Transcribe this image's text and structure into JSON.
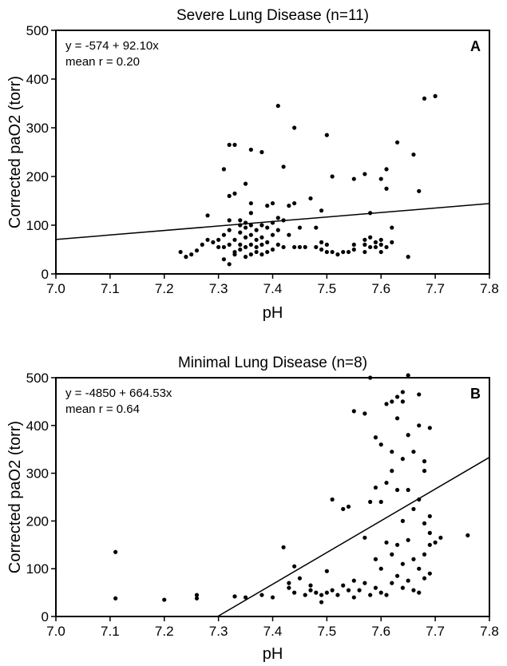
{
  "chart_data": [
    {
      "type": "scatter",
      "panel_label": "A",
      "title": "Severe Lung Disease (n=11)",
      "xlabel": "pH",
      "ylabel": "Corrected paO2 (torr)",
      "xlim": [
        7.0,
        7.8
      ],
      "ylim": [
        0,
        500
      ],
      "xticks": [
        7.0,
        7.1,
        7.2,
        7.3,
        7.4,
        7.5,
        7.6,
        7.7,
        7.8
      ],
      "yticks": [
        0,
        100,
        200,
        300,
        400,
        500
      ],
      "xtick_labels": [
        "7.0",
        "7.1",
        "7.2",
        "7.3",
        "7.4",
        "7.5",
        "7.6",
        "7.7",
        "7.8"
      ],
      "ytick_labels": [
        "0",
        "100",
        "200",
        "300",
        "400",
        "500"
      ],
      "annotation_lines": [
        "y = -574 + 92.10x",
        "mean r = 0.20"
      ],
      "grid": false,
      "regression": {
        "intercept": -574,
        "slope": 92.1
      },
      "points": [
        [
          7.23,
          45
        ],
        [
          7.24,
          35
        ],
        [
          7.25,
          40
        ],
        [
          7.26,
          48
        ],
        [
          7.27,
          60
        ],
        [
          7.28,
          70
        ],
        [
          7.28,
          120
        ],
        [
          7.29,
          65
        ],
        [
          7.3,
          55
        ],
        [
          7.3,
          70
        ],
        [
          7.31,
          30
        ],
        [
          7.31,
          55
        ],
        [
          7.31,
          80
        ],
        [
          7.31,
          215
        ],
        [
          7.32,
          20
        ],
        [
          7.32,
          60
        ],
        [
          7.32,
          90
        ],
        [
          7.32,
          110
        ],
        [
          7.32,
          160
        ],
        [
          7.32,
          265
        ],
        [
          7.33,
          40
        ],
        [
          7.33,
          45
        ],
        [
          7.33,
          70
        ],
        [
          7.33,
          165
        ],
        [
          7.33,
          265
        ],
        [
          7.34,
          50
        ],
        [
          7.34,
          60
        ],
        [
          7.34,
          85
        ],
        [
          7.34,
          100
        ],
        [
          7.34,
          110
        ],
        [
          7.35,
          35
        ],
        [
          7.35,
          55
        ],
        [
          7.35,
          75
        ],
        [
          7.35,
          95
        ],
        [
          7.35,
          105
        ],
        [
          7.35,
          185
        ],
        [
          7.36,
          40
        ],
        [
          7.36,
          60
        ],
        [
          7.36,
          80
        ],
        [
          7.36,
          100
        ],
        [
          7.36,
          125
        ],
        [
          7.36,
          145
        ],
        [
          7.36,
          255
        ],
        [
          7.37,
          45
        ],
        [
          7.37,
          55
        ],
        [
          7.37,
          70
        ],
        [
          7.37,
          90
        ],
        [
          7.38,
          40
        ],
        [
          7.38,
          60
        ],
        [
          7.38,
          75
        ],
        [
          7.38,
          100
        ],
        [
          7.38,
          250
        ],
        [
          7.39,
          45
        ],
        [
          7.39,
          65
        ],
        [
          7.39,
          95
        ],
        [
          7.39,
          140
        ],
        [
          7.4,
          50
        ],
        [
          7.4,
          80
        ],
        [
          7.4,
          105
        ],
        [
          7.4,
          145
        ],
        [
          7.41,
          60
        ],
        [
          7.41,
          90
        ],
        [
          7.41,
          115
        ],
        [
          7.41,
          345
        ],
        [
          7.42,
          55
        ],
        [
          7.42,
          110
        ],
        [
          7.42,
          220
        ],
        [
          7.43,
          80
        ],
        [
          7.43,
          140
        ],
        [
          7.44,
          55
        ],
        [
          7.44,
          145
        ],
        [
          7.44,
          300
        ],
        [
          7.45,
          55
        ],
        [
          7.45,
          95
        ],
        [
          7.46,
          55
        ],
        [
          7.47,
          155
        ],
        [
          7.48,
          55
        ],
        [
          7.48,
          95
        ],
        [
          7.49,
          50
        ],
        [
          7.49,
          65
        ],
        [
          7.49,
          130
        ],
        [
          7.5,
          45
        ],
        [
          7.5,
          60
        ],
        [
          7.5,
          285
        ],
        [
          7.51,
          45
        ],
        [
          7.51,
          200
        ],
        [
          7.52,
          40
        ],
        [
          7.53,
          45
        ],
        [
          7.54,
          45
        ],
        [
          7.55,
          50
        ],
        [
          7.55,
          60
        ],
        [
          7.55,
          195
        ],
        [
          7.57,
          45
        ],
        [
          7.57,
          60
        ],
        [
          7.57,
          70
        ],
        [
          7.57,
          205
        ],
        [
          7.58,
          55
        ],
        [
          7.58,
          75
        ],
        [
          7.58,
          125
        ],
        [
          7.59,
          55
        ],
        [
          7.59,
          65
        ],
        [
          7.6,
          45
        ],
        [
          7.6,
          60
        ],
        [
          7.6,
          70
        ],
        [
          7.6,
          195
        ],
        [
          7.61,
          55
        ],
        [
          7.61,
          215
        ],
        [
          7.61,
          175
        ],
        [
          7.62,
          65
        ],
        [
          7.62,
          95
        ],
        [
          7.63,
          270
        ],
        [
          7.65,
          35
        ],
        [
          7.66,
          245
        ],
        [
          7.67,
          170
        ],
        [
          7.68,
          360
        ],
        [
          7.7,
          365
        ]
      ]
    },
    {
      "type": "scatter",
      "panel_label": "B",
      "title": "Minimal Lung Disease (n=8)",
      "xlabel": "pH",
      "ylabel": "Corrected paO2 (torr)",
      "xlim": [
        7.0,
        7.8
      ],
      "ylim": [
        0,
        500
      ],
      "xticks": [
        7.0,
        7.1,
        7.2,
        7.3,
        7.4,
        7.5,
        7.6,
        7.7,
        7.8
      ],
      "yticks": [
        0,
        100,
        200,
        300,
        400,
        500
      ],
      "xtick_labels": [
        "7.0",
        "7.1",
        "7.2",
        "7.3",
        "7.4",
        "7.5",
        "7.6",
        "7.7",
        "7.8"
      ],
      "ytick_labels": [
        "0",
        "100",
        "200",
        "300",
        "400",
        "500"
      ],
      "annotation_lines": [
        "y = -4850 + 664.53x",
        "mean r = 0.64"
      ],
      "grid": false,
      "regression": {
        "intercept": -4850,
        "slope": 664.53
      },
      "points": [
        [
          7.11,
          135
        ],
        [
          7.11,
          38
        ],
        [
          7.2,
          35
        ],
        [
          7.26,
          45
        ],
        [
          7.26,
          38
        ],
        [
          7.33,
          42
        ],
        [
          7.35,
          40
        ],
        [
          7.38,
          45
        ],
        [
          7.4,
          40
        ],
        [
          7.42,
          145
        ],
        [
          7.43,
          60
        ],
        [
          7.43,
          70
        ],
        [
          7.44,
          50
        ],
        [
          7.44,
          105
        ],
        [
          7.45,
          80
        ],
        [
          7.46,
          45
        ],
        [
          7.47,
          55
        ],
        [
          7.47,
          65
        ],
        [
          7.48,
          50
        ],
        [
          7.49,
          45
        ],
        [
          7.49,
          30
        ],
        [
          7.5,
          50
        ],
        [
          7.5,
          95
        ],
        [
          7.51,
          55
        ],
        [
          7.51,
          245
        ],
        [
          7.52,
          45
        ],
        [
          7.53,
          65
        ],
        [
          7.53,
          225
        ],
        [
          7.54,
          55
        ],
        [
          7.54,
          230
        ],
        [
          7.55,
          40
        ],
        [
          7.55,
          75
        ],
        [
          7.55,
          430
        ],
        [
          7.56,
          55
        ],
        [
          7.57,
          70
        ],
        [
          7.57,
          165
        ],
        [
          7.57,
          425
        ],
        [
          7.58,
          45
        ],
        [
          7.58,
          500
        ],
        [
          7.58,
          240
        ],
        [
          7.59,
          60
        ],
        [
          7.59,
          120
        ],
        [
          7.59,
          375
        ],
        [
          7.59,
          270
        ],
        [
          7.6,
          50
        ],
        [
          7.6,
          100
        ],
        [
          7.6,
          240
        ],
        [
          7.6,
          360
        ],
        [
          7.61,
          45
        ],
        [
          7.61,
          155
        ],
        [
          7.61,
          280
        ],
        [
          7.61,
          445
        ],
        [
          7.62,
          70
        ],
        [
          7.62,
          130
        ],
        [
          7.62,
          305
        ],
        [
          7.62,
          450
        ],
        [
          7.62,
          345
        ],
        [
          7.63,
          85
        ],
        [
          7.63,
          150
        ],
        [
          7.63,
          265
        ],
        [
          7.63,
          415
        ],
        [
          7.63,
          460
        ],
        [
          7.64,
          60
        ],
        [
          7.64,
          110
        ],
        [
          7.64,
          200
        ],
        [
          7.64,
          330
        ],
        [
          7.64,
          450
        ],
        [
          7.64,
          470
        ],
        [
          7.65,
          75
        ],
        [
          7.65,
          160
        ],
        [
          7.65,
          265
        ],
        [
          7.65,
          380
        ],
        [
          7.65,
          505
        ],
        [
          7.66,
          55
        ],
        [
          7.66,
          120
        ],
        [
          7.66,
          225
        ],
        [
          7.66,
          345
        ],
        [
          7.67,
          50
        ],
        [
          7.67,
          100
        ],
        [
          7.67,
          245
        ],
        [
          7.67,
          400
        ],
        [
          7.67,
          465
        ],
        [
          7.68,
          80
        ],
        [
          7.68,
          130
        ],
        [
          7.68,
          195
        ],
        [
          7.68,
          305
        ],
        [
          7.68,
          325
        ],
        [
          7.69,
          90
        ],
        [
          7.69,
          150
        ],
        [
          7.69,
          175
        ],
        [
          7.69,
          210
        ],
        [
          7.69,
          395
        ],
        [
          7.7,
          155
        ],
        [
          7.71,
          165
        ],
        [
          7.76,
          170
        ]
      ]
    }
  ]
}
